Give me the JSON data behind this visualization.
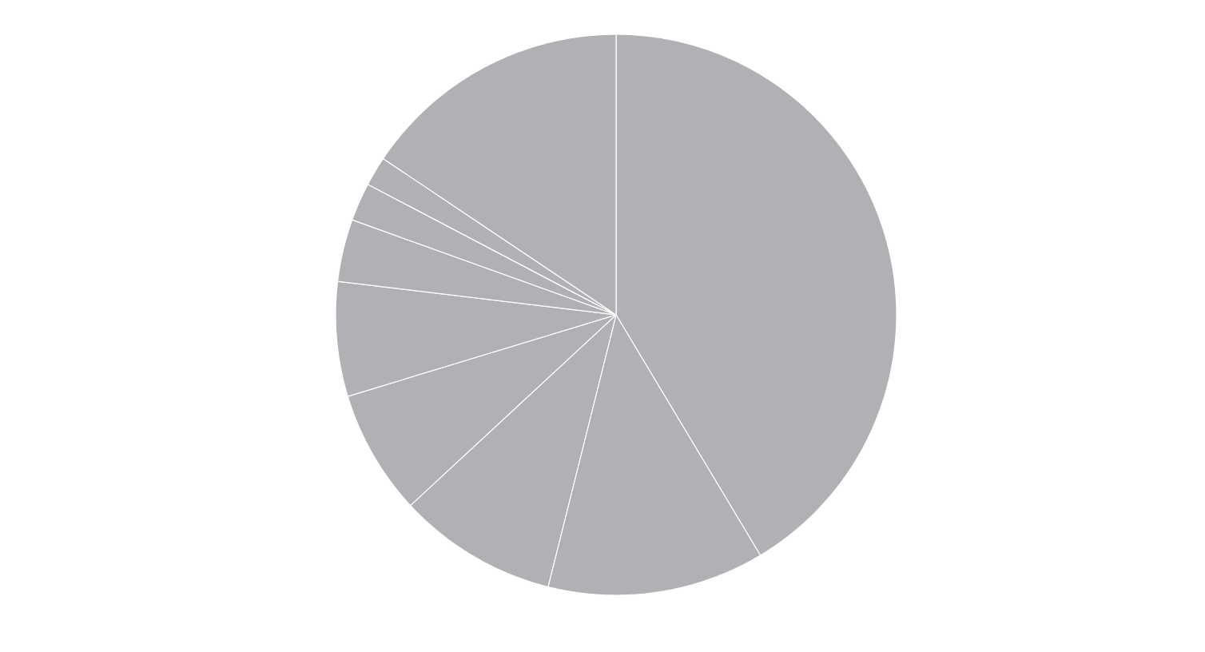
{
  "chart_data": {
    "type": "pie",
    "categories": [
      null,
      null,
      null,
      null,
      null,
      null,
      null,
      null,
      null
    ],
    "values": [
      41.4,
      12.5,
      9.2,
      7.2,
      6.6,
      3.6,
      2.2,
      1.7,
      15.6
    ],
    "colors": [
      "#b1b1b5",
      "#b1b1b5",
      "#b1b1b5",
      "#b1b1b5",
      "#b1b1b5",
      "#b1b1b5",
      "#b1b1b5",
      "#b1b1b5",
      "#b1b1b5"
    ]
  }
}
